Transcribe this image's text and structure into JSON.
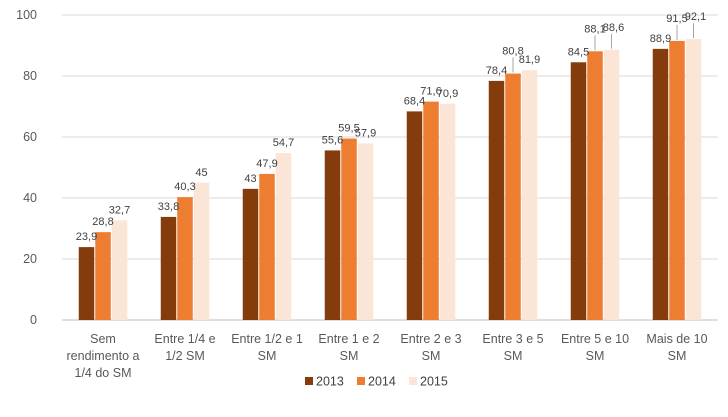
{
  "chart_data": {
    "type": "bar",
    "categories": [
      [
        "Sem",
        "rendimento a",
        "1/4 do SM"
      ],
      [
        "Entre 1/4 e",
        "1/2 SM"
      ],
      [
        "Entre 1/2 e 1",
        "SM"
      ],
      [
        "Entre 1 e 2",
        "SM"
      ],
      [
        "Entre 2 e 3",
        "SM"
      ],
      [
        "Entre 3 e 5",
        "SM"
      ],
      [
        "Entre 5 e 10",
        "SM"
      ],
      [
        "Mais de 10",
        "SM"
      ]
    ],
    "series": [
      {
        "name": "2013",
        "color": "#843C0C",
        "values": [
          23.9,
          33.8,
          43,
          55.6,
          68.4,
          78.4,
          84.5,
          88.9
        ],
        "labels": [
          "23,9",
          "33,8",
          "43",
          "55,6",
          "68,4",
          "78,4",
          "84,5",
          "88,9"
        ]
      },
      {
        "name": "2014",
        "color": "#ED7D31",
        "values": [
          28.8,
          40.3,
          47.9,
          59.5,
          71.6,
          80.8,
          88.1,
          91.5
        ],
        "labels": [
          "28,8",
          "40,3",
          "47,9",
          "59,5",
          "71,6",
          "80,8",
          "88,1",
          "91,5"
        ]
      },
      {
        "name": "2015",
        "color": "#FBE5D6",
        "values": [
          32.7,
          45,
          54.7,
          57.9,
          70.9,
          81.9,
          88.6,
          92.1
        ],
        "labels": [
          "32,7",
          "45",
          "54,7",
          "57,9",
          "70,9",
          "81,9",
          "88,6",
          "92,1"
        ]
      }
    ],
    "yticks": [
      "0",
      "20",
      "40",
      "60",
      "80",
      "100"
    ],
    "ylim": [
      0,
      100
    ],
    "legend_position": "bottom",
    "grid": true,
    "title": "",
    "xlabel": "",
    "ylabel": ""
  }
}
